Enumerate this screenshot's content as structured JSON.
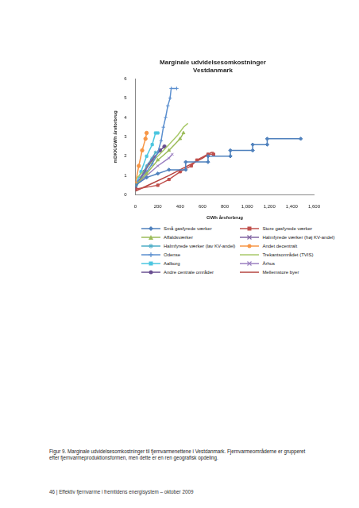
{
  "chart_data": {
    "type": "line",
    "title": [
      "Marginale udvidelsesomkostninger",
      "Vestdanmark"
    ],
    "x_label": "GWh årsforbrug",
    "y_label": "mDKK/GWh årsforbrug",
    "xlim": [
      0,
      1600
    ],
    "xticks": [
      0,
      200,
      400,
      600,
      800,
      1000,
      1200,
      1400,
      1600
    ],
    "ylim": [
      0,
      6
    ],
    "yticks": [
      0,
      1,
      2,
      3,
      4,
      5,
      6
    ],
    "grid": false,
    "series": [
      {
        "name": "Små gasfyrede værker",
        "color": "#4f81bd",
        "marker": "diamond",
        "x": [
          0,
          100,
          200,
          300,
          450,
          450,
          650,
          650,
          850,
          850,
          1050,
          1050,
          1180,
          1180,
          1480
        ],
        "values": [
          0.5,
          0.9,
          1.1,
          1.3,
          1.3,
          1.7,
          1.7,
          2.0,
          2.0,
          2.3,
          2.3,
          2.6,
          2.6,
          2.9,
          2.9
        ]
      },
      {
        "name": "Store gasfyrede værker",
        "color": "#c0504d",
        "marker": "square",
        "x": [
          0,
          200,
          300,
          400,
          500,
          550,
          650,
          700
        ],
        "values": [
          0.3,
          0.5,
          0.8,
          1.2,
          1.5,
          1.8,
          2.1,
          2.1
        ]
      },
      {
        "name": "Affaldsværker",
        "color": "#9bbb59",
        "marker": "triangle",
        "x": [
          0,
          100,
          200,
          300,
          400,
          430
        ],
        "values": [
          0.5,
          1.1,
          1.8,
          2.3,
          2.9,
          3.2
        ]
      },
      {
        "name": "Halmfyrede værker (høj KV-andel)",
        "color": "#8064a2",
        "marker": "x",
        "x": [
          0,
          60,
          120,
          170
        ],
        "values": [
          0.4,
          1.0,
          1.6,
          2.0
        ]
      },
      {
        "name": "Halmfyrede værker (lav KV-andel)",
        "color": "#4bacc6",
        "marker": "star",
        "x": [
          0,
          50,
          100,
          150,
          180
        ],
        "values": [
          0.3,
          0.9,
          1.5,
          1.9,
          2.2
        ]
      },
      {
        "name": "Andet decentralt",
        "color": "#f79646",
        "marker": "circle",
        "x": [
          0,
          30,
          60,
          90,
          100
        ],
        "values": [
          0.6,
          1.5,
          2.3,
          2.9,
          3.2
        ]
      },
      {
        "name": "Odense",
        "color": "#5b8fcf",
        "marker": "plus",
        "x": [
          0,
          50,
          100,
          150,
          200,
          230,
          250,
          270,
          290,
          310,
          320,
          370
        ],
        "values": [
          0.6,
          0.9,
          1.2,
          1.6,
          2.2,
          2.8,
          3.5,
          4.0,
          4.6,
          5.0,
          5.5,
          5.5
        ]
      },
      {
        "name": "Trekantsområdet (TVIS)",
        "color": "#a9c96a",
        "marker": "none",
        "x": [
          0,
          100,
          200,
          300,
          380,
          430,
          470
        ],
        "values": [
          0.8,
          1.4,
          2.0,
          2.6,
          3.1,
          3.5,
          3.7
        ]
      },
      {
        "name": "Aalborg",
        "color": "#4bc6e0",
        "marker": "square",
        "x": [
          0,
          50,
          100,
          150,
          180,
          200
        ],
        "values": [
          0.5,
          1.2,
          2.0,
          2.6,
          3.2,
          3.2
        ]
      },
      {
        "name": "Århus",
        "color": "#9a7fc0",
        "marker": "x",
        "x": [
          0,
          100,
          200,
          300,
          330
        ],
        "values": [
          0.5,
          1.0,
          1.5,
          1.9,
          2.1
        ]
      },
      {
        "name": "Andre centrale områder",
        "color": "#6a4f91",
        "marker": "circle",
        "x": [
          0,
          80,
          150,
          220,
          260
        ],
        "values": [
          0.4,
          1.2,
          1.8,
          2.3,
          2.5
        ]
      },
      {
        "name": "Mellemstore byer",
        "color": "#b5443f",
        "marker": "none",
        "x": [
          0,
          150,
          300,
          400,
          500,
          600,
          680,
          700
        ],
        "values": [
          0.2,
          0.6,
          1.0,
          1.3,
          1.6,
          1.9,
          2.2,
          2.2
        ]
      }
    ]
  },
  "caption": "Figur 9. Marginale udvidelsesomkostninger til fjernvarmenettene i Vestdanmark. Fjernvarmeområderne er grupperet efter fjernvarmeproduktionsformen, men dette er en ren geografisk opdeling.",
  "footer": "46 | Effektiv fjernvarme i fremtidens energisystem – oktober 2009"
}
